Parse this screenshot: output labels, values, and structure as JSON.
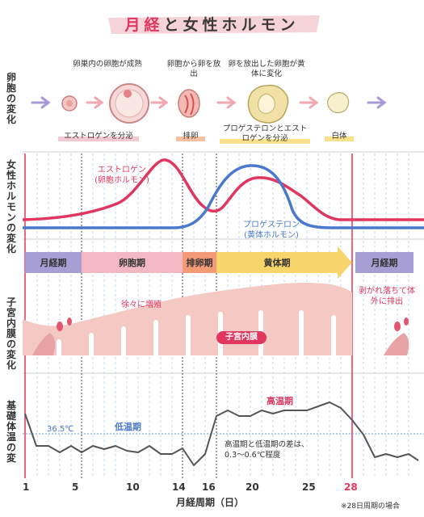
{
  "title": {
    "part1": "月経",
    "part2": "と女性ホルモン"
  },
  "row_labels": {
    "ovary": [
      "卵",
      "胞",
      "の",
      "変",
      "化"
    ],
    "hormone": [
      "女",
      "性",
      "ホ",
      "ル",
      "モ",
      "ン",
      "の",
      "変",
      "化"
    ],
    "endometrium": [
      "子",
      "宮",
      "内",
      "膜",
      "の",
      "変",
      "化"
    ],
    "bbt": [
      "基",
      "礎",
      "体",
      "温",
      "の",
      "変",
      "化"
    ]
  },
  "ovary_stages": {
    "top_labels": [
      "卵巣内の卵胞が成熟",
      "卵胞から卵を放出",
      "卵を放出した卵胞が黄体に変化"
    ],
    "bottom_labels": [
      "エストロゲンを分泌",
      "排卵",
      "プロゲステロンとエストロゲンを分泌",
      "白体"
    ]
  },
  "hormones": {
    "estrogen_label": "エストロゲン",
    "estrogen_sub": "(卵胞ホルモン)",
    "progesterone_label": "プロゲステロン",
    "progesterone_sub": "(黄体ホルモン)",
    "colors": {
      "estrogen": "#e0365f",
      "progesterone": "#4a78cc"
    }
  },
  "phases": [
    "月経期",
    "卵胞期",
    "排卵期",
    "黄体期",
    "月経期"
  ],
  "endometrium": {
    "growing": "徐々に増殖",
    "shedding": "剥がれ落ちて体外に排出",
    "badge": "子宮内膜"
  },
  "bbt": {
    "temp_label": "36.5℃",
    "low_label": "低温期",
    "high_label": "高温期",
    "note_line1": "高温期と低温期の差は、",
    "note_line2": "0.3～0.6℃程度"
  },
  "x_axis": {
    "ticks": [
      "1",
      "5",
      "10",
      "14",
      "16",
      "20",
      "25",
      "28"
    ],
    "title": "月経周期（日）",
    "footnote": "※28日周期の場合"
  }
}
